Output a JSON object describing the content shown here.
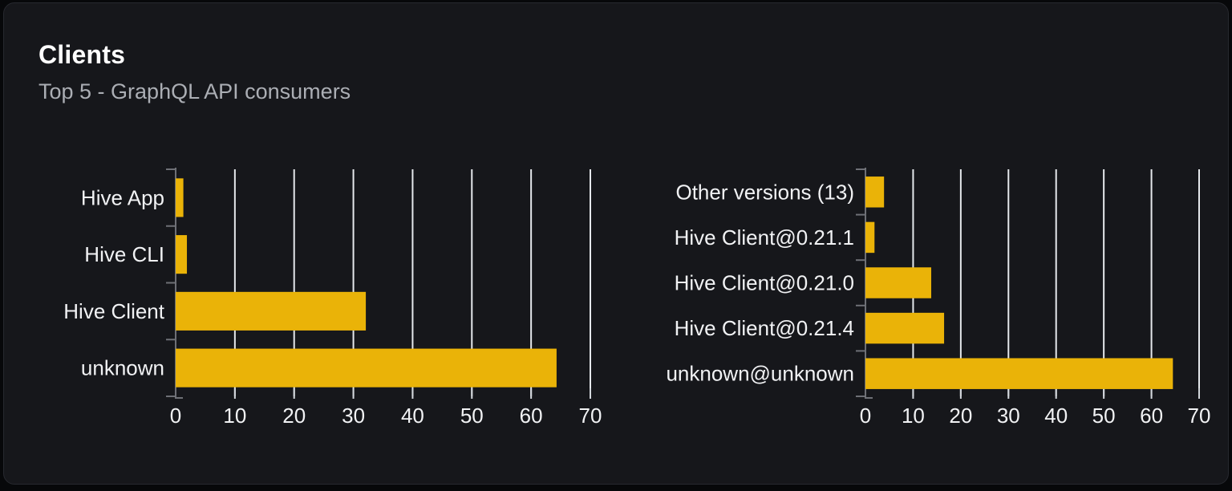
{
  "card": {
    "title": "Clients",
    "subtitle": "Top 5 - GraphQL API consumers"
  },
  "colors": {
    "accent_bar": "#eab308",
    "page_bg": "#07080a",
    "card_bg": "#16171b",
    "card_border": "#27292f",
    "grid_line": "#e5e8ec",
    "axis_line": "#6e7076",
    "tick_mark": "#d3d7dc",
    "axis_label": "#f1f2f4",
    "title_text": "#ffffff",
    "subtitle_text": "#abaeb4"
  },
  "chart_data": [
    {
      "type": "bar",
      "orientation": "horizontal",
      "title": "",
      "xlabel": "",
      "ylabel": "",
      "categories": [
        "Hive App",
        "Hive CLI",
        "Hive Client",
        "unknown"
      ],
      "values": [
        1.3,
        1.9,
        32.1,
        64.3
      ],
      "xlim": [
        0,
        70
      ],
      "xticks": [
        0,
        10,
        20,
        30,
        40,
        50,
        60,
        70
      ],
      "grid": "vertical",
      "legend": "none"
    },
    {
      "type": "bar",
      "orientation": "horizontal",
      "title": "",
      "xlabel": "",
      "ylabel": "",
      "categories": [
        "Other versions (13)",
        "Hive Client@0.21.1",
        "Hive Client@0.21.0",
        "Hive Client@0.21.4",
        "unknown@unknown"
      ],
      "values": [
        3.9,
        1.9,
        13.8,
        16.5,
        64.5
      ],
      "xlim": [
        0,
        70
      ],
      "xticks": [
        0,
        10,
        20,
        30,
        40,
        50,
        60,
        70
      ],
      "grid": "vertical",
      "legend": "none"
    }
  ]
}
